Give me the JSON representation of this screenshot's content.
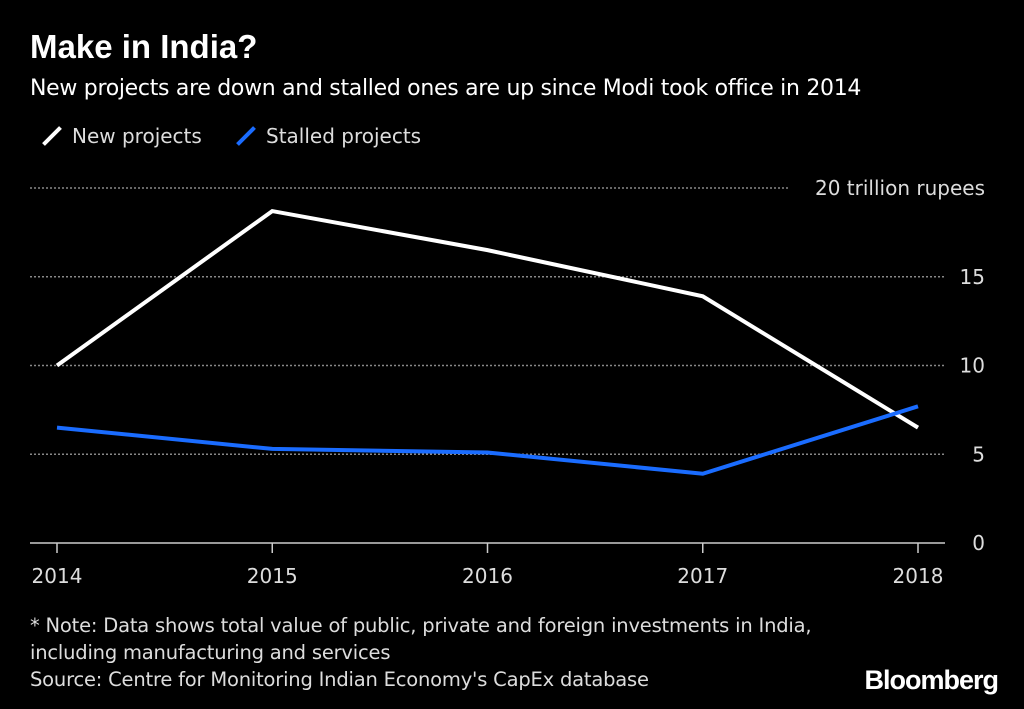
{
  "title": "Make in India?",
  "subtitle": "New projects are down and stalled ones are up since Modi took office in 2014",
  "note": "* Note: Data shows total value of public, private and foreign investments in India, including manufacturing and services",
  "source": "Source: Centre for Monitoring Indian Economy's CapEx database",
  "logo": "Bloomberg",
  "chart_data": {
    "type": "line",
    "title": "Make in India?",
    "x": [
      "2014",
      "2015",
      "2016",
      "2017",
      "2018"
    ],
    "series": [
      {
        "name": "New projects",
        "color": "#ffffff",
        "values": [
          10.0,
          18.7,
          16.5,
          13.9,
          6.5
        ]
      },
      {
        "name": "Stalled projects",
        "color": "#1a6cff",
        "values": [
          6.5,
          5.3,
          5.1,
          3.9,
          7.7
        ]
      }
    ],
    "yticks": [
      0,
      5,
      10,
      15,
      20
    ],
    "ytick_labels": [
      "0",
      "5",
      "10",
      "15",
      "20 trillion rupees"
    ],
    "ylim": [
      0,
      20
    ],
    "grid": true,
    "legend": "top-left"
  }
}
